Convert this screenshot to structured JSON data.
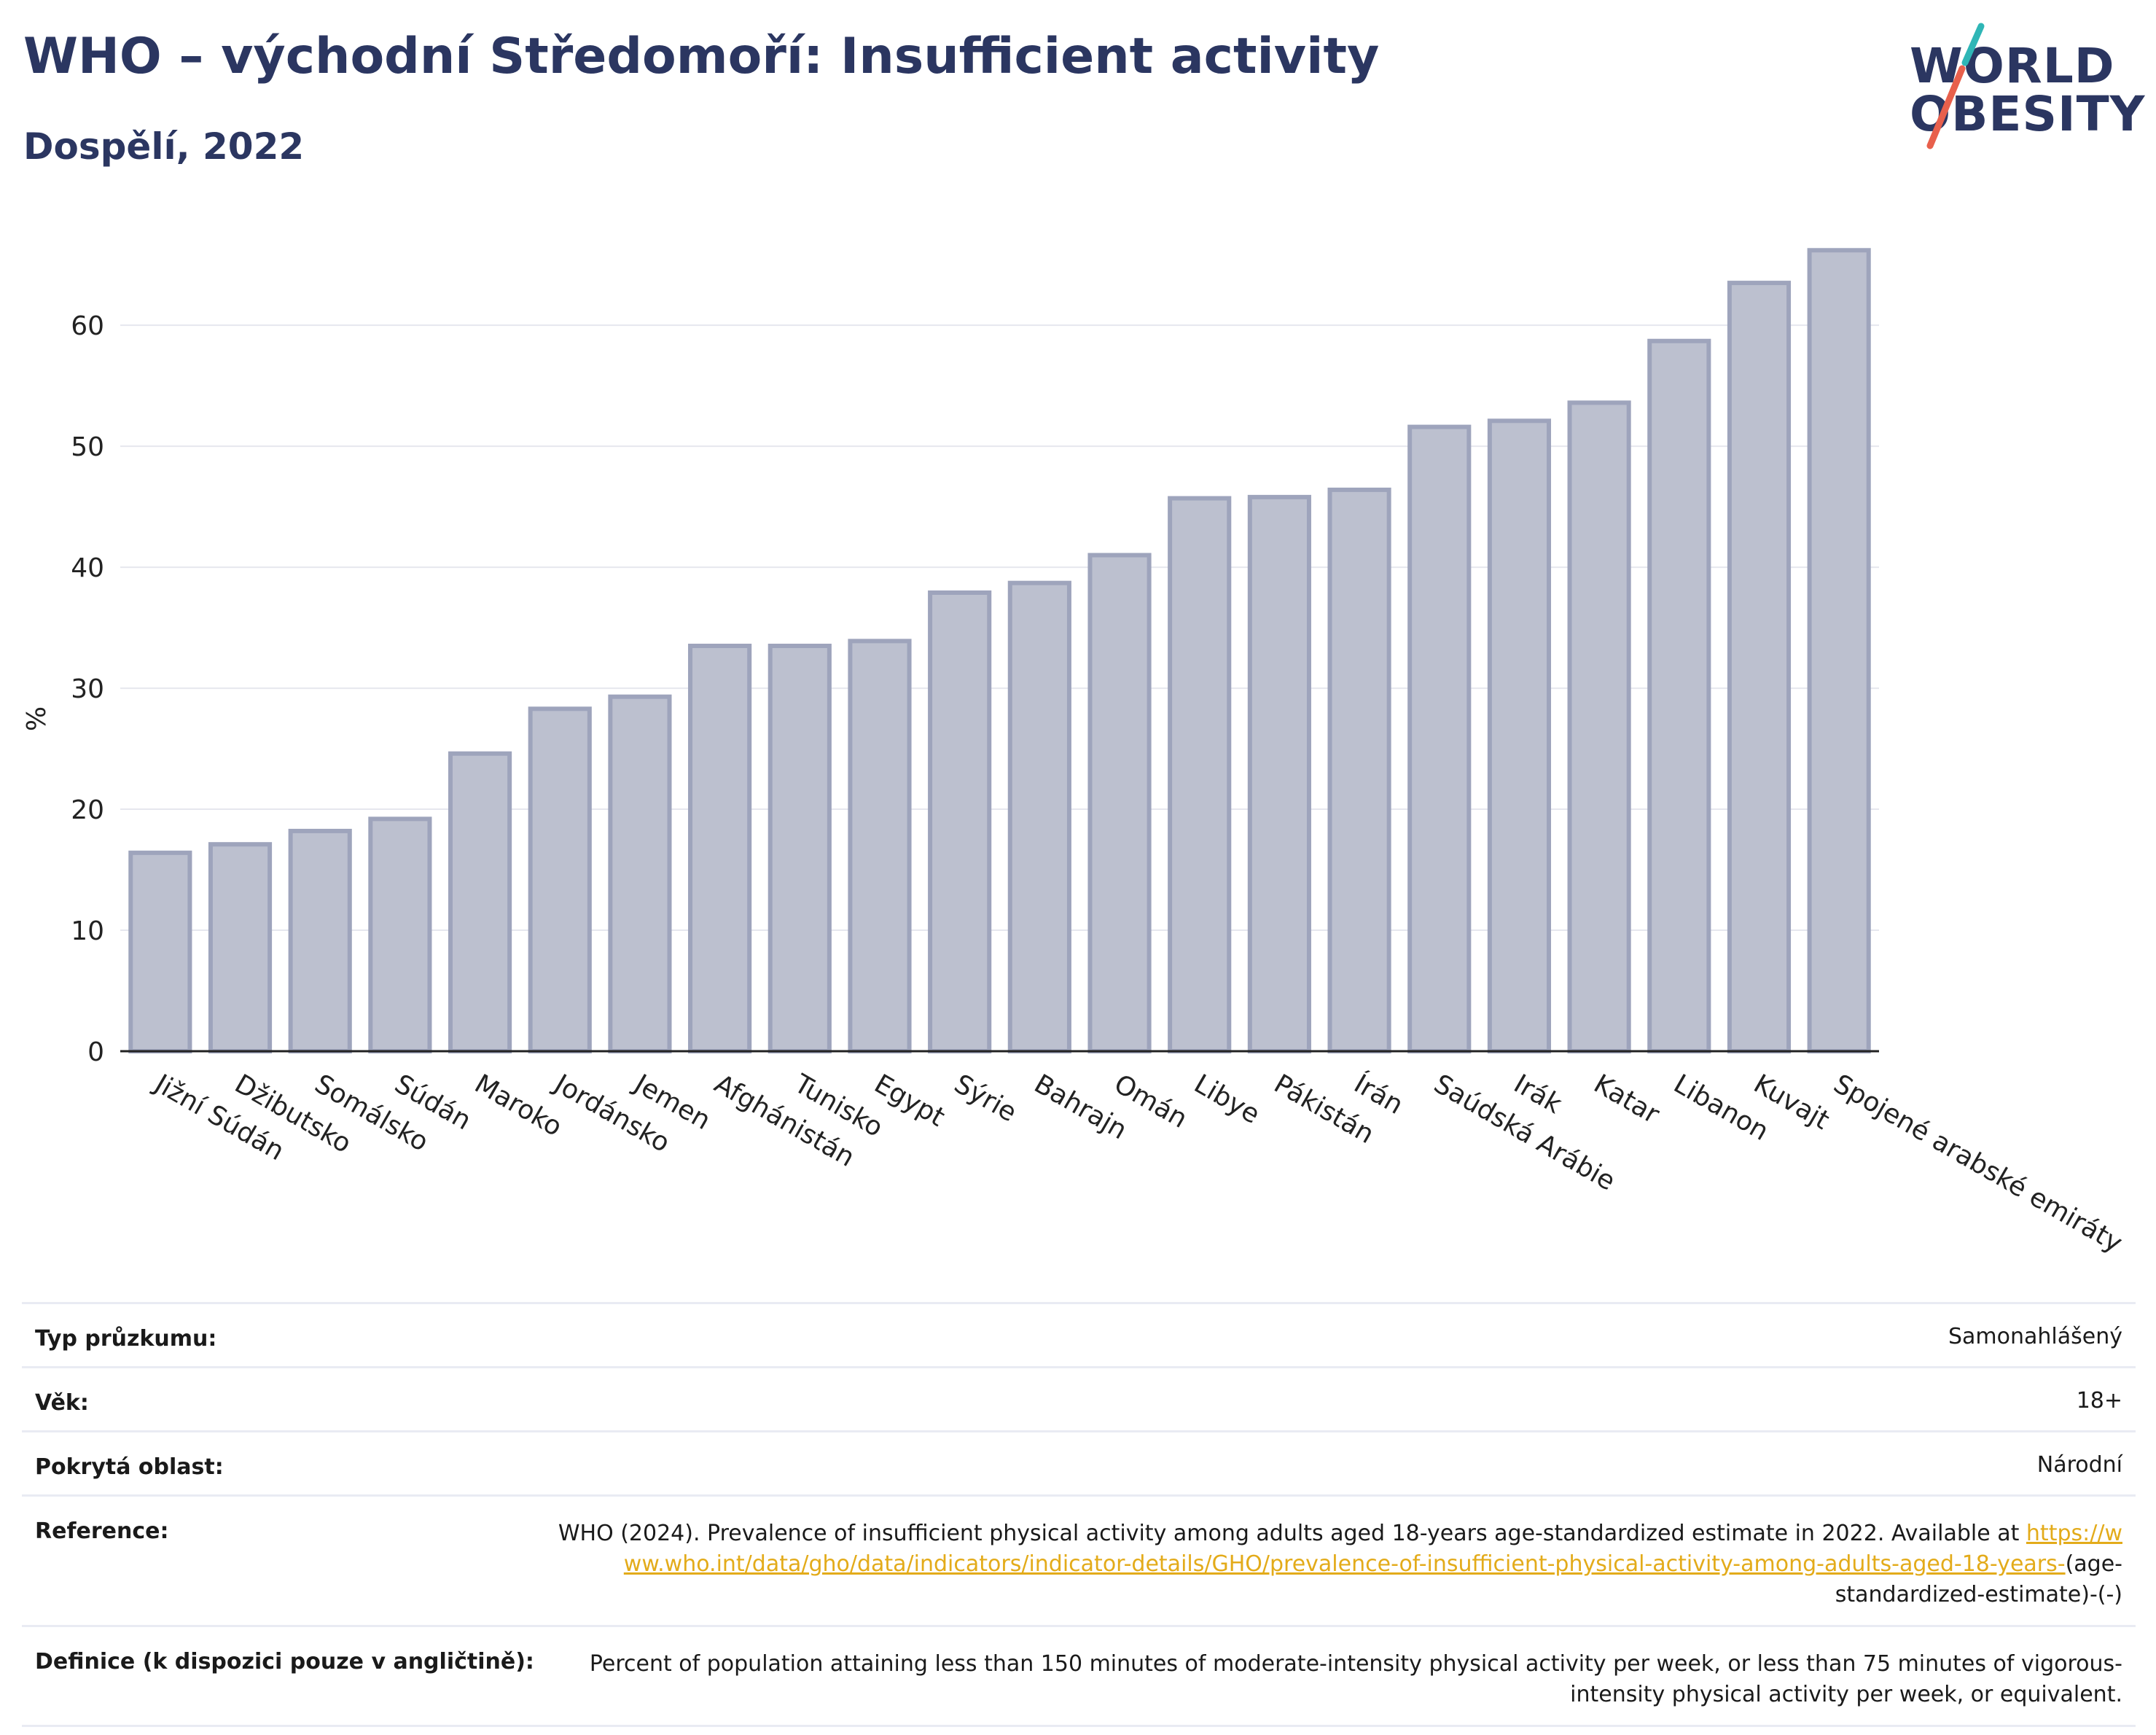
{
  "header": {
    "title": "WHO – východní Středomoří: Insufficient activity",
    "subtitle": "Dospělí, 2022"
  },
  "logo": {
    "line1": "WORLD",
    "line2": "OBESITY",
    "colors": {
      "slash_teal": "#2fb6b6",
      "slash_red": "#e8604c"
    }
  },
  "chart_data": {
    "type": "bar",
    "ylabel": "%",
    "xlabel": "",
    "ylim": [
      0,
      67
    ],
    "yticks": [
      0,
      10,
      20,
      30,
      40,
      50,
      60
    ],
    "grid": true,
    "bar_fill": "#bcc0cf",
    "bar_stroke": "#9ea4bc",
    "categories": [
      "Jižní Súdán",
      "Džibutsko",
      "Somálsko",
      "Súdán",
      "Maroko",
      "Jordánsko",
      "Jemen",
      "Afghánistán",
      "Tunisko",
      "Egypt",
      "Sýrie",
      "Bahrajn",
      "Omán",
      "Libye",
      "Pákistán",
      "Írán",
      "Saúdská Arábie",
      "Irák",
      "Katar",
      "Libanon",
      "Kuvajt",
      "Spojené arabské emiráty"
    ],
    "values": [
      16.4,
      17.1,
      18.2,
      19.2,
      24.6,
      28.3,
      29.3,
      33.5,
      33.5,
      33.9,
      37.9,
      38.7,
      41.0,
      45.7,
      45.8,
      46.4,
      51.6,
      52.1,
      53.6,
      58.7,
      63.5,
      66.2
    ]
  },
  "meta": {
    "survey_type": {
      "label": "Typ průzkumu:",
      "value": "Samonahlášený"
    },
    "age": {
      "label": "Věk:",
      "value": "18+"
    },
    "area": {
      "label": "Pokrytá oblast:",
      "value": "Národní"
    },
    "reference": {
      "label": "Reference:",
      "text": "WHO (2024). Prevalence of insufficient physical activity among adults aged 18-years age-standardized estimate in 2022. Available at",
      "link": "https://www.who.int/data/gho/data/indicators/indicator-details/GHO/prevalence-of-insufficient-physical-activity-among-adults-aged-18-years-",
      "suffix": "(age-standardized-estimate)-(-)"
    },
    "definition": {
      "label": "Definice (k dispozici pouze v angličtině):",
      "value": "Percent of population attaining less than 150 minutes of moderate-intensity physical activity per week, or less than 75 minutes of vigorous-intensity physical activity per week, or equivalent."
    }
  }
}
